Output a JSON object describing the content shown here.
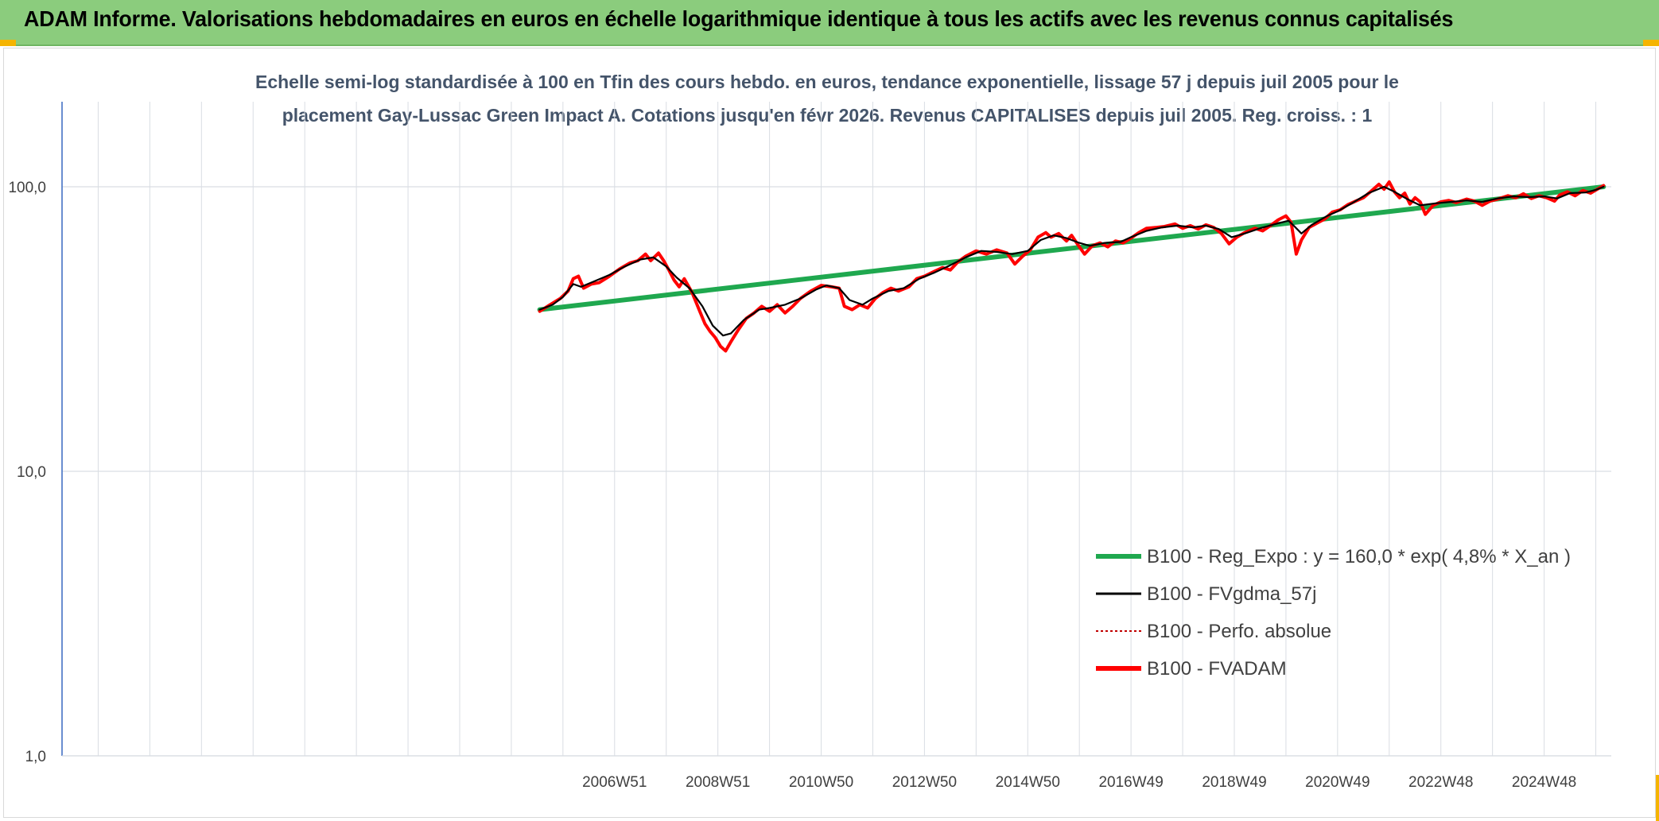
{
  "header": {
    "title": "ADAM Informe. Valorisations hebdomadaires en euros en échelle logarithmique identique à tous les actifs avec les revenus connus capitalisés"
  },
  "colors": {
    "header_bg": "#8bcc7d",
    "accent_corner": "#f5b400",
    "regression": "#1fa84f",
    "smoothed": "#000000",
    "perf_abs": "#c00000",
    "fvadam": "#ff0000",
    "axis_line": "#4472c4",
    "grid": "#d9dde3"
  },
  "chart_data": {
    "type": "line",
    "title_lines": [
      "Echelle semi-log standardisée à 100 en Tfin des cours hebdo. en euros, tendance exponentielle, lissage 57 j depuis juil 2005 pour le",
      "placement Gay-Lussac Green Impact A. Cotations jusqu'en févr 2026. Revenus CAPITALISES depuis juil 2005. Reg. croiss. : 1"
    ],
    "y_scale": "log",
    "ylim": [
      1,
      200
    ],
    "y_ticks": [
      {
        "value": 1,
        "label": "1,0"
      },
      {
        "value": 10,
        "label": "10,0"
      },
      {
        "value": 100,
        "label": "100,0"
      }
    ],
    "xlim": [
      1996.3,
      2026.3
    ],
    "x_ticks": [
      {
        "value": 2007.0,
        "label": "2006W51"
      },
      {
        "value": 2009.0,
        "label": "2008W51"
      },
      {
        "value": 2011.0,
        "label": "2010W50"
      },
      {
        "value": 2013.0,
        "label": "2012W50"
      },
      {
        "value": 2015.0,
        "label": "2014W50"
      },
      {
        "value": 2017.0,
        "label": "2016W49"
      },
      {
        "value": 2019.0,
        "label": "2018W49"
      },
      {
        "value": 2021.0,
        "label": "2020W49"
      },
      {
        "value": 2023.0,
        "label": "2022W48"
      },
      {
        "value": 2025.0,
        "label": "2024W48"
      }
    ],
    "grid": true,
    "legend_position": "bottom-right",
    "series": [
      {
        "name": "B100 - Reg_Expo : y = 160,0 * exp( 4,8% *  X_an )",
        "key": "regression",
        "style": "thick-solid",
        "points": [
          [
            2005.55,
            37.0
          ],
          [
            2026.15,
            100.0
          ]
        ]
      },
      {
        "name": "B100 - FVgdma_57j",
        "key": "smoothed",
        "style": "thin-solid",
        "points": [
          [
            2005.55,
            37.0
          ],
          [
            2005.8,
            38.5
          ],
          [
            2006.0,
            41.0
          ],
          [
            2006.2,
            45.5
          ],
          [
            2006.35,
            44.5
          ],
          [
            2006.6,
            46.5
          ],
          [
            2006.9,
            49.0
          ],
          [
            2007.2,
            52.5
          ],
          [
            2007.5,
            55.5
          ],
          [
            2007.75,
            56.5
          ],
          [
            2008.0,
            52.5
          ],
          [
            2008.2,
            48.0
          ],
          [
            2008.45,
            44.0
          ],
          [
            2008.7,
            38.0
          ],
          [
            2008.9,
            32.5
          ],
          [
            2009.1,
            30.0
          ],
          [
            2009.25,
            30.5
          ],
          [
            2009.5,
            34.0
          ],
          [
            2009.8,
            37.0
          ],
          [
            2010.0,
            37.5
          ],
          [
            2010.3,
            38.5
          ],
          [
            2010.6,
            40.5
          ],
          [
            2010.9,
            43.5
          ],
          [
            2011.1,
            45.0
          ],
          [
            2011.35,
            44.0
          ],
          [
            2011.55,
            40.0
          ],
          [
            2011.8,
            38.5
          ],
          [
            2012.0,
            40.5
          ],
          [
            2012.3,
            43.0
          ],
          [
            2012.6,
            44.0
          ],
          [
            2012.9,
            47.5
          ],
          [
            2013.2,
            50.0
          ],
          [
            2013.5,
            53.0
          ],
          [
            2013.8,
            56.5
          ],
          [
            2014.1,
            59.5
          ],
          [
            2014.4,
            59.0
          ],
          [
            2014.7,
            58.0
          ],
          [
            2015.0,
            59.5
          ],
          [
            2015.25,
            65.0
          ],
          [
            2015.5,
            67.5
          ],
          [
            2015.75,
            66.0
          ],
          [
            2016.0,
            63.5
          ],
          [
            2016.2,
            62.0
          ],
          [
            2016.5,
            63.5
          ],
          [
            2016.8,
            64.0
          ],
          [
            2017.0,
            66.5
          ],
          [
            2017.3,
            70.0
          ],
          [
            2017.6,
            72.0
          ],
          [
            2017.9,
            73.0
          ],
          [
            2018.2,
            72.0
          ],
          [
            2018.45,
            73.0
          ],
          [
            2018.7,
            71.0
          ],
          [
            2018.95,
            66.5
          ],
          [
            2019.2,
            68.5
          ],
          [
            2019.5,
            71.5
          ],
          [
            2019.8,
            74.0
          ],
          [
            2020.05,
            76.0
          ],
          [
            2020.15,
            73.0
          ],
          [
            2020.3,
            68.5
          ],
          [
            2020.5,
            73.5
          ],
          [
            2020.8,
            79.0
          ],
          [
            2021.0,
            82.0
          ],
          [
            2021.3,
            88.0
          ],
          [
            2021.6,
            95.0
          ],
          [
            2021.9,
            100.0
          ],
          [
            2022.1,
            96.0
          ],
          [
            2022.35,
            90.5
          ],
          [
            2022.6,
            86.0
          ],
          [
            2022.9,
            87.5
          ],
          [
            2023.2,
            88.5
          ],
          [
            2023.5,
            89.5
          ],
          [
            2023.8,
            88.5
          ],
          [
            2024.1,
            91.0
          ],
          [
            2024.4,
            92.5
          ],
          [
            2024.7,
            92.0
          ],
          [
            2025.0,
            92.5
          ],
          [
            2025.25,
            91.0
          ],
          [
            2025.5,
            95.0
          ],
          [
            2025.8,
            95.5
          ],
          [
            2026.0,
            97.5
          ],
          [
            2026.15,
            100.0
          ]
        ]
      },
      {
        "name": "B100 - Perfo. absolue",
        "key": "perf_abs",
        "style": "dotted"
      },
      {
        "name": "B100 - FVADAM",
        "key": "fvadam",
        "style": "thick-solid",
        "points": [
          [
            2005.55,
            36.5
          ],
          [
            2005.75,
            38.5
          ],
          [
            2005.95,
            40.5
          ],
          [
            2006.1,
            43.0
          ],
          [
            2006.2,
            47.5
          ],
          [
            2006.3,
            48.5
          ],
          [
            2006.4,
            44.0
          ],
          [
            2006.55,
            45.5
          ],
          [
            2006.7,
            46.0
          ],
          [
            2006.9,
            48.5
          ],
          [
            2007.1,
            51.5
          ],
          [
            2007.3,
            54.0
          ],
          [
            2007.45,
            55.0
          ],
          [
            2007.6,
            58.0
          ],
          [
            2007.7,
            55.0
          ],
          [
            2007.85,
            58.5
          ],
          [
            2007.95,
            55.0
          ],
          [
            2008.05,
            51.0
          ],
          [
            2008.15,
            47.0
          ],
          [
            2008.25,
            44.5
          ],
          [
            2008.35,
            47.5
          ],
          [
            2008.5,
            42.5
          ],
          [
            2008.65,
            36.5
          ],
          [
            2008.75,
            33.0
          ],
          [
            2008.85,
            31.0
          ],
          [
            2008.95,
            29.5
          ],
          [
            2009.05,
            27.5
          ],
          [
            2009.15,
            26.5
          ],
          [
            2009.25,
            28.5
          ],
          [
            2009.4,
            31.5
          ],
          [
            2009.55,
            34.5
          ],
          [
            2009.7,
            36.0
          ],
          [
            2009.85,
            38.0
          ],
          [
            2010.0,
            36.5
          ],
          [
            2010.15,
            38.5
          ],
          [
            2010.3,
            36.0
          ],
          [
            2010.45,
            38.0
          ],
          [
            2010.6,
            40.5
          ],
          [
            2010.8,
            43.0
          ],
          [
            2011.0,
            45.0
          ],
          [
            2011.2,
            44.5
          ],
          [
            2011.35,
            44.0
          ],
          [
            2011.45,
            38.0
          ],
          [
            2011.6,
            37.0
          ],
          [
            2011.75,
            38.5
          ],
          [
            2011.9,
            37.5
          ],
          [
            2012.05,
            40.5
          ],
          [
            2012.2,
            42.5
          ],
          [
            2012.35,
            44.0
          ],
          [
            2012.5,
            43.0
          ],
          [
            2012.7,
            44.5
          ],
          [
            2012.85,
            47.5
          ],
          [
            2013.0,
            48.5
          ],
          [
            2013.2,
            50.5
          ],
          [
            2013.35,
            52.0
          ],
          [
            2013.5,
            51.0
          ],
          [
            2013.65,
            54.5
          ],
          [
            2013.8,
            57.0
          ],
          [
            2014.0,
            59.5
          ],
          [
            2014.2,
            58.0
          ],
          [
            2014.4,
            60.0
          ],
          [
            2014.6,
            58.5
          ],
          [
            2014.75,
            53.5
          ],
          [
            2014.9,
            57.0
          ],
          [
            2015.05,
            60.0
          ],
          [
            2015.2,
            66.5
          ],
          [
            2015.35,
            69.0
          ],
          [
            2015.45,
            66.5
          ],
          [
            2015.6,
            68.5
          ],
          [
            2015.75,
            64.5
          ],
          [
            2015.85,
            67.5
          ],
          [
            2016.0,
            61.5
          ],
          [
            2016.1,
            58.0
          ],
          [
            2016.25,
            62.0
          ],
          [
            2016.4,
            63.5
          ],
          [
            2016.55,
            61.5
          ],
          [
            2016.7,
            64.5
          ],
          [
            2016.85,
            63.5
          ],
          [
            2017.0,
            66.0
          ],
          [
            2017.15,
            69.0
          ],
          [
            2017.3,
            71.5
          ],
          [
            2017.5,
            72.0
          ],
          [
            2017.65,
            72.5
          ],
          [
            2017.85,
            74.0
          ],
          [
            2018.0,
            71.5
          ],
          [
            2018.15,
            73.0
          ],
          [
            2018.3,
            71.0
          ],
          [
            2018.45,
            73.5
          ],
          [
            2018.6,
            72.0
          ],
          [
            2018.75,
            68.5
          ],
          [
            2018.9,
            63.0
          ],
          [
            2019.05,
            66.5
          ],
          [
            2019.2,
            69.0
          ],
          [
            2019.4,
            71.5
          ],
          [
            2019.55,
            70.0
          ],
          [
            2019.7,
            73.0
          ],
          [
            2019.85,
            76.5
          ],
          [
            2020.0,
            79.0
          ],
          [
            2020.1,
            75.0
          ],
          [
            2020.2,
            58.0
          ],
          [
            2020.3,
            65.0
          ],
          [
            2020.45,
            72.0
          ],
          [
            2020.6,
            74.5
          ],
          [
            2020.75,
            77.0
          ],
          [
            2020.9,
            81.5
          ],
          [
            2021.05,
            83.0
          ],
          [
            2021.2,
            86.5
          ],
          [
            2021.35,
            89.0
          ],
          [
            2021.5,
            91.5
          ],
          [
            2021.65,
            96.5
          ],
          [
            2021.8,
            102.0
          ],
          [
            2021.9,
            98.0
          ],
          [
            2022.0,
            104.0
          ],
          [
            2022.1,
            96.0
          ],
          [
            2022.2,
            91.5
          ],
          [
            2022.3,
            95.0
          ],
          [
            2022.4,
            87.0
          ],
          [
            2022.5,
            91.5
          ],
          [
            2022.6,
            88.5
          ],
          [
            2022.7,
            80.0
          ],
          [
            2022.85,
            86.0
          ],
          [
            2023.0,
            88.5
          ],
          [
            2023.15,
            89.5
          ],
          [
            2023.3,
            88.0
          ],
          [
            2023.5,
            90.5
          ],
          [
            2023.65,
            89.0
          ],
          [
            2023.8,
            86.0
          ],
          [
            2023.95,
            89.0
          ],
          [
            2024.1,
            90.5
          ],
          [
            2024.3,
            93.0
          ],
          [
            2024.45,
            91.5
          ],
          [
            2024.6,
            94.5
          ],
          [
            2024.75,
            91.0
          ],
          [
            2024.9,
            93.0
          ],
          [
            2025.05,
            91.5
          ],
          [
            2025.2,
            89.0
          ],
          [
            2025.3,
            93.5
          ],
          [
            2025.45,
            96.0
          ],
          [
            2025.6,
            93.0
          ],
          [
            2025.75,
            97.0
          ],
          [
            2025.9,
            95.0
          ],
          [
            2026.05,
            98.5
          ],
          [
            2026.15,
            101.0
          ]
        ]
      }
    ]
  }
}
